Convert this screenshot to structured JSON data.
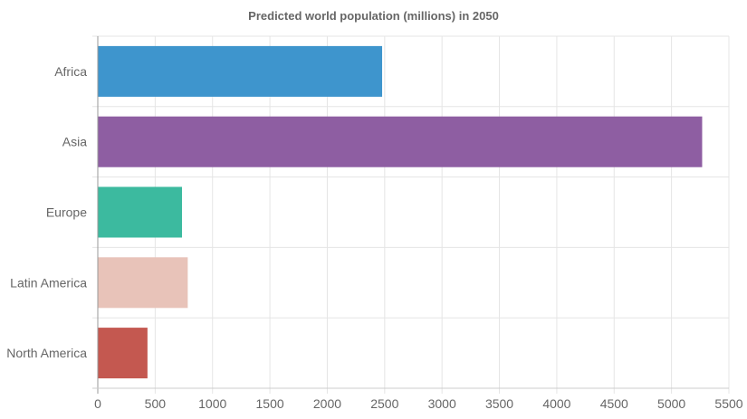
{
  "chart_data": {
    "type": "bar",
    "orientation": "horizontal",
    "title": "Predicted world population (millions) in 2050",
    "xlabel": "",
    "ylabel": "",
    "categories": [
      "Africa",
      "Asia",
      "Europe",
      "Latin America",
      "North America"
    ],
    "values": [
      2478,
      5267,
      734,
      784,
      433
    ],
    "colors": [
      "#3e95cd",
      "#8e5ea2",
      "#3cba9f",
      "#e8c3b9",
      "#c45850"
    ],
    "xlim": [
      0,
      5500
    ],
    "x_ticks": [
      "0",
      "500",
      "1000",
      "1500",
      "2000",
      "2500",
      "3000",
      "3500",
      "4000",
      "4500",
      "5000",
      "5500"
    ],
    "grid": true,
    "legend": "none"
  }
}
